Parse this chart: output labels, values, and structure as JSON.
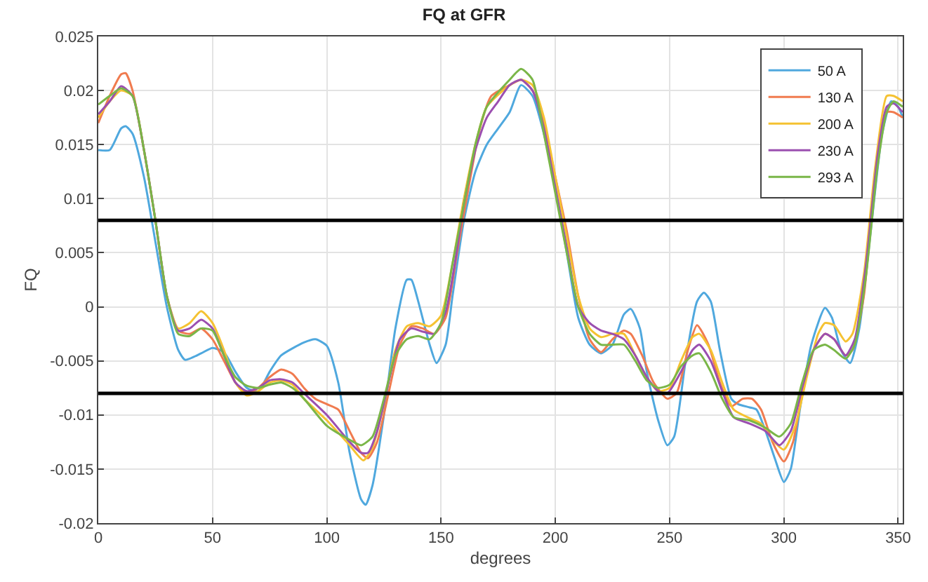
{
  "chart_data": {
    "type": "line",
    "title": "FQ at GFR",
    "xlabel": "degrees",
    "ylabel": "FQ",
    "xlim": [
      0,
      352
    ],
    "xticks": [
      0,
      50,
      100,
      150,
      200,
      250,
      300,
      350
    ],
    "ylim": [
      -0.02,
      0.025
    ],
    "yticks": [
      -0.02,
      -0.015,
      -0.01,
      -0.005,
      0,
      0.005,
      0.01,
      0.015,
      0.02,
      0.025
    ],
    "grid": true,
    "legend": "top right",
    "marker": "none",
    "line_style": "solid",
    "ref_lines": [
      {
        "axis": "y",
        "value": 0.008,
        "color": "#000000"
      },
      {
        "axis": "y",
        "value": -0.008,
        "color": "#000000"
      }
    ],
    "series": [
      {
        "name": "50 A",
        "color": "#4fa8de",
        "x": [
          0,
          5,
          10,
          12,
          15,
          20,
          25,
          30,
          35,
          38,
          45,
          50,
          55,
          60,
          65,
          70,
          75,
          80,
          90,
          95,
          100,
          105,
          110,
          115,
          117,
          120,
          125,
          130,
          135,
          137,
          140,
          145,
          148,
          152,
          155,
          160,
          165,
          170,
          175,
          180,
          185,
          190,
          195,
          200,
          205,
          210,
          215,
          220,
          225,
          230,
          233,
          237,
          240,
          245,
          249,
          252,
          257,
          262,
          265,
          268,
          272,
          277,
          280,
          285,
          288,
          292,
          296,
          300,
          303,
          307,
          312,
          318,
          321,
          325,
          329,
          333,
          338,
          343,
          347,
          350,
          352
        ],
        "values": [
          0.0145,
          0.0145,
          0.0165,
          0.0167,
          0.016,
          0.012,
          0.006,
          0.0,
          -0.004,
          -0.0049,
          -0.0043,
          -0.0038,
          -0.0042,
          -0.006,
          -0.0075,
          -0.0078,
          -0.006,
          -0.0045,
          -0.0033,
          -0.003,
          -0.0036,
          -0.007,
          -0.0135,
          -0.0178,
          -0.0183,
          -0.0165,
          -0.01,
          -0.002,
          0.0025,
          0.0025,
          0.0005,
          -0.0035,
          -0.0052,
          -0.0035,
          0.001,
          0.008,
          0.0125,
          0.015,
          0.0165,
          0.018,
          0.0205,
          0.0195,
          0.016,
          0.011,
          0.005,
          -0.001,
          -0.0035,
          -0.0043,
          -0.0035,
          -0.0007,
          -0.0002,
          -0.002,
          -0.006,
          -0.0105,
          -0.0128,
          -0.012,
          -0.005,
          0.0005,
          0.0013,
          0.0005,
          -0.004,
          -0.0085,
          -0.009,
          -0.0093,
          -0.0095,
          -0.0115,
          -0.014,
          -0.0162,
          -0.015,
          -0.0095,
          -0.0035,
          -0.0001,
          -0.001,
          -0.004,
          -0.0052,
          -0.002,
          0.007,
          0.016,
          0.019,
          0.0185,
          0.0175
        ]
      },
      {
        "name": "130 A",
        "color": "#f07b4f",
        "x": [
          0,
          5,
          10,
          12,
          15,
          20,
          25,
          30,
          35,
          40,
          45,
          50,
          55,
          60,
          65,
          70,
          75,
          80,
          85,
          90,
          95,
          100,
          105,
          110,
          115,
          118,
          122,
          127,
          132,
          137,
          142,
          147,
          152,
          157,
          162,
          167,
          172,
          180,
          185,
          190,
          195,
          200,
          205,
          210,
          215,
          220,
          225,
          230,
          233,
          238,
          243,
          249,
          253,
          258,
          262,
          267,
          272,
          277,
          282,
          286,
          290,
          295,
          300,
          304,
          308,
          313,
          318,
          322,
          327,
          330,
          335,
          340,
          345,
          348,
          352
        ],
        "values": [
          0.017,
          0.0195,
          0.0215,
          0.0216,
          0.02,
          0.0145,
          0.008,
          0.001,
          -0.0022,
          -0.0025,
          -0.002,
          -0.003,
          -0.005,
          -0.007,
          -0.008,
          -0.0075,
          -0.0065,
          -0.0058,
          -0.0062,
          -0.0075,
          -0.0085,
          -0.009,
          -0.0095,
          -0.0115,
          -0.0135,
          -0.014,
          -0.0125,
          -0.008,
          -0.0035,
          -0.0018,
          -0.002,
          -0.0025,
          -0.001,
          0.005,
          0.011,
          0.0165,
          0.0195,
          0.0205,
          0.021,
          0.02,
          0.017,
          0.012,
          0.007,
          0.001,
          -0.003,
          -0.0042,
          -0.003,
          -0.0022,
          -0.0025,
          -0.0045,
          -0.007,
          -0.0085,
          -0.008,
          -0.004,
          -0.0017,
          -0.0035,
          -0.007,
          -0.0092,
          -0.0085,
          -0.0085,
          -0.0095,
          -0.0125,
          -0.0143,
          -0.0125,
          -0.008,
          -0.004,
          -0.0025,
          -0.003,
          -0.0045,
          -0.004,
          0.001,
          0.0125,
          0.018,
          0.018,
          0.0175
        ]
      },
      {
        "name": "200 A",
        "color": "#f5c232",
        "x": [
          0,
          5,
          10,
          15,
          20,
          25,
          30,
          35,
          40,
          45,
          50,
          55,
          60,
          65,
          70,
          75,
          80,
          85,
          90,
          100,
          110,
          116,
          120,
          125,
          130,
          135,
          140,
          145,
          150,
          155,
          160,
          165,
          170,
          180,
          185,
          190,
          195,
          200,
          205,
          210,
          215,
          220,
          225,
          230,
          235,
          240,
          245,
          250,
          255,
          260,
          263,
          268,
          273,
          278,
          285,
          290,
          295,
          300,
          305,
          310,
          315,
          318,
          322,
          327,
          330,
          335,
          340,
          345,
          348,
          352
        ],
        "values": [
          0.0175,
          0.019,
          0.02,
          0.0195,
          0.0145,
          0.008,
          0.001,
          -0.002,
          -0.0015,
          -0.0004,
          -0.0015,
          -0.004,
          -0.007,
          -0.0082,
          -0.0078,
          -0.007,
          -0.0068,
          -0.0072,
          -0.0085,
          -0.0105,
          -0.0128,
          -0.0142,
          -0.013,
          -0.009,
          -0.004,
          -0.0018,
          -0.0015,
          -0.0018,
          -0.0008,
          0.004,
          0.01,
          0.015,
          0.0185,
          0.0205,
          0.021,
          0.0205,
          0.0175,
          0.012,
          0.0065,
          0.001,
          -0.002,
          -0.0028,
          -0.0025,
          -0.0025,
          -0.0045,
          -0.0065,
          -0.0078,
          -0.0075,
          -0.005,
          -0.0028,
          -0.0025,
          -0.004,
          -0.007,
          -0.0095,
          -0.0103,
          -0.0108,
          -0.0123,
          -0.0132,
          -0.011,
          -0.0065,
          -0.0025,
          -0.0015,
          -0.0017,
          -0.0032,
          -0.0025,
          0.003,
          0.013,
          0.0195,
          0.0195,
          0.019
        ]
      },
      {
        "name": "230 A",
        "color": "#9b4fb0",
        "x": [
          0,
          5,
          10,
          15,
          20,
          25,
          30,
          35,
          40,
          45,
          50,
          55,
          60,
          65,
          70,
          75,
          80,
          85,
          90,
          100,
          110,
          115,
          118,
          122,
          127,
          132,
          137,
          142,
          147,
          152,
          156,
          160,
          165,
          170,
          175,
          180,
          185,
          190,
          195,
          200,
          205,
          210,
          215,
          220,
          225,
          230,
          235,
          240,
          245,
          249,
          255,
          260,
          263,
          268,
          273,
          278,
          285,
          292,
          298,
          303,
          308,
          313,
          318,
          322,
          327,
          331,
          336,
          341,
          345,
          348,
          352
        ],
        "values": [
          0.0178,
          0.019,
          0.0204,
          0.0195,
          0.0145,
          0.008,
          0.001,
          -0.0022,
          -0.002,
          -0.0012,
          -0.002,
          -0.0045,
          -0.007,
          -0.0078,
          -0.0075,
          -0.0068,
          -0.0067,
          -0.007,
          -0.008,
          -0.01,
          -0.0125,
          -0.0135,
          -0.0135,
          -0.0115,
          -0.007,
          -0.003,
          -0.002,
          -0.0023,
          -0.0025,
          -0.0005,
          0.004,
          0.0095,
          0.0145,
          0.0175,
          0.019,
          0.0205,
          0.021,
          0.02,
          0.0165,
          0.011,
          0.0055,
          0.0,
          -0.0015,
          -0.0022,
          -0.0025,
          -0.003,
          -0.0045,
          -0.0065,
          -0.0078,
          -0.008,
          -0.006,
          -0.004,
          -0.0035,
          -0.005,
          -0.0078,
          -0.0102,
          -0.0108,
          -0.0115,
          -0.0128,
          -0.0115,
          -0.0075,
          -0.004,
          -0.0025,
          -0.003,
          -0.0045,
          -0.003,
          0.004,
          0.014,
          0.0185,
          0.0188,
          0.018
        ]
      },
      {
        "name": "293 A",
        "color": "#7ab648",
        "x": [
          0,
          5,
          10,
          15,
          20,
          25,
          30,
          35,
          40,
          45,
          50,
          55,
          60,
          65,
          70,
          75,
          80,
          85,
          90,
          100,
          110,
          115,
          120,
          125,
          130,
          135,
          140,
          145,
          150,
          155,
          160,
          165,
          170,
          180,
          185,
          190,
          195,
          200,
          205,
          210,
          215,
          220,
          225,
          230,
          235,
          240,
          245,
          250,
          255,
          260,
          263,
          268,
          273,
          278,
          285,
          292,
          298,
          303,
          308,
          313,
          318,
          322,
          327,
          331,
          336,
          341,
          345,
          348,
          352
        ],
        "values": [
          0.0187,
          0.0195,
          0.0202,
          0.0195,
          0.0145,
          0.008,
          0.001,
          -0.0025,
          -0.0027,
          -0.002,
          -0.0022,
          -0.0045,
          -0.0065,
          -0.0073,
          -0.0075,
          -0.0072,
          -0.007,
          -0.0075,
          -0.0085,
          -0.011,
          -0.0123,
          -0.0128,
          -0.012,
          -0.0085,
          -0.0045,
          -0.003,
          -0.0027,
          -0.003,
          -0.0015,
          0.004,
          0.0095,
          0.015,
          0.0185,
          0.021,
          0.022,
          0.021,
          0.016,
          0.0105,
          0.005,
          0.0,
          -0.0025,
          -0.0035,
          -0.0035,
          -0.0035,
          -0.005,
          -0.0068,
          -0.0075,
          -0.0072,
          -0.0055,
          -0.0045,
          -0.0043,
          -0.006,
          -0.0085,
          -0.0102,
          -0.0105,
          -0.0112,
          -0.012,
          -0.0108,
          -0.007,
          -0.004,
          -0.0035,
          -0.004,
          -0.0048,
          -0.0035,
          0.003,
          0.013,
          0.018,
          0.019,
          0.0185
        ]
      }
    ]
  }
}
